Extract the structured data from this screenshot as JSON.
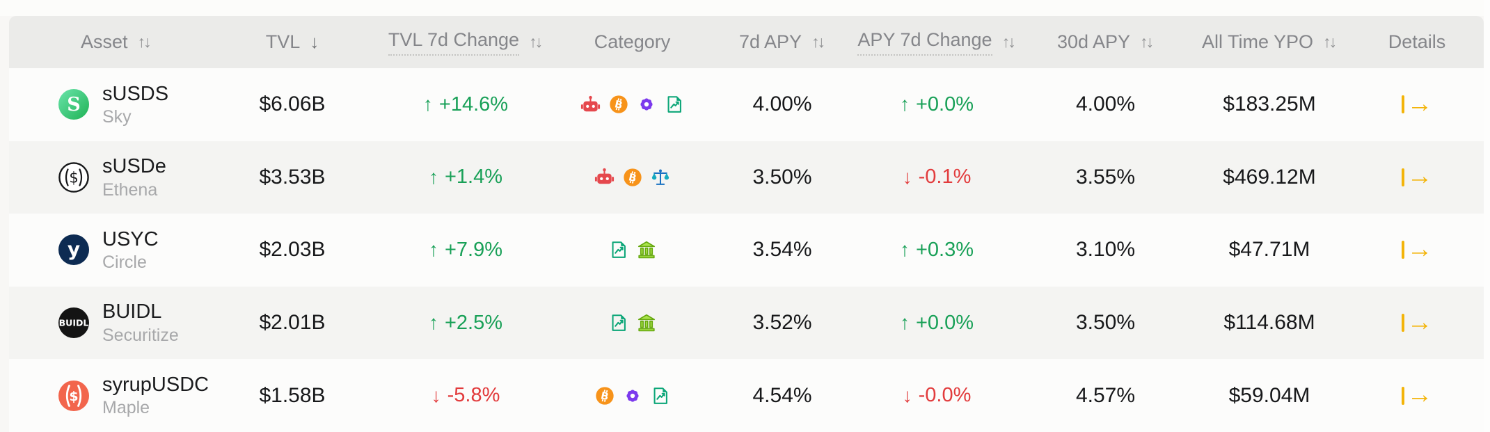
{
  "table": {
    "columns": [
      {
        "label": "Asset",
        "sort": "both"
      },
      {
        "label": "TVL",
        "sort": "desc"
      },
      {
        "label": "TVL 7d Change",
        "sort": "both",
        "hint_underline": true
      },
      {
        "label": "Category",
        "sort": "none"
      },
      {
        "label": "7d APY",
        "sort": "both"
      },
      {
        "label": "APY 7d Change",
        "sort": "both",
        "hint_underline": true
      },
      {
        "label": "30d APY",
        "sort": "both"
      },
      {
        "label": "All Time YPO",
        "sort": "both"
      },
      {
        "label": "Details",
        "sort": "none"
      }
    ],
    "rows": [
      {
        "logo": "sky",
        "asset": "sUSDS",
        "issuer": "Sky",
        "tvl": "$6.06B",
        "tvl_change": {
          "dir": "up",
          "value": "+14.6%"
        },
        "categories": [
          "robot",
          "btc",
          "gear",
          "chart"
        ],
        "apy_7d": "4.00%",
        "apy_change": {
          "dir": "up",
          "value": "+0.0%"
        },
        "apy_30d": "4.00%",
        "all_time_ypo": "$183.25M"
      },
      {
        "logo": "ethena",
        "asset": "sUSDe",
        "issuer": "Ethena",
        "tvl": "$3.53B",
        "tvl_change": {
          "dir": "up",
          "value": "+1.4%"
        },
        "categories": [
          "robot",
          "btc",
          "scales"
        ],
        "apy_7d": "3.50%",
        "apy_change": {
          "dir": "down",
          "value": "-0.1%"
        },
        "apy_30d": "3.55%",
        "all_time_ypo": "$469.12M"
      },
      {
        "logo": "usyc",
        "asset": "USYC",
        "issuer": "Circle",
        "tvl": "$2.03B",
        "tvl_change": {
          "dir": "up",
          "value": "+7.9%"
        },
        "categories": [
          "chart",
          "bank"
        ],
        "apy_7d": "3.54%",
        "apy_change": {
          "dir": "up",
          "value": "+0.3%"
        },
        "apy_30d": "3.10%",
        "all_time_ypo": "$47.71M"
      },
      {
        "logo": "buidl",
        "asset": "BUIDL",
        "issuer": "Securitize",
        "tvl": "$2.01B",
        "tvl_change": {
          "dir": "up",
          "value": "+2.5%"
        },
        "categories": [
          "chart",
          "bank"
        ],
        "apy_7d": "3.52%",
        "apy_change": {
          "dir": "up",
          "value": "+0.0%"
        },
        "apy_30d": "3.50%",
        "all_time_ypo": "$114.68M"
      },
      {
        "logo": "syrup",
        "asset": "syrupUSDC",
        "issuer": "Maple",
        "tvl": "$1.58B",
        "tvl_change": {
          "dir": "down",
          "value": "-5.8%"
        },
        "categories": [
          "btc",
          "gear",
          "chart"
        ],
        "apy_7d": "4.54%",
        "apy_change": {
          "dir": "down",
          "value": "-0.0%"
        },
        "apy_30d": "4.57%",
        "all_time_ypo": "$59.04M"
      }
    ]
  },
  "glyphs": {
    "sort_both": "↑↓",
    "sort_desc": "↓",
    "up_arrow": "↑",
    "down_arrow": "↓",
    "details_arrow": "→"
  },
  "colors": {
    "positive_green": "#18a057",
    "negative_red": "#e23b3c",
    "details_amber": "#f3b409",
    "header_bg": "#ebebe9",
    "row_bg": "#fcfcfb",
    "row_alt_bg": "#f4f4f2",
    "bitcoin_orange": "#f7931a",
    "robot_red": "#e5484d",
    "gear_purple": "#7c3aed",
    "chart_doc_green": "#0ca678",
    "scales_blue": "#1971c2",
    "bank_green": "#74b816",
    "sky_logo_green": "#2fbf63",
    "usyc_navy": "#0d2b52",
    "buidl_black": "#141414",
    "syrup_orange": "#f2654c"
  }
}
